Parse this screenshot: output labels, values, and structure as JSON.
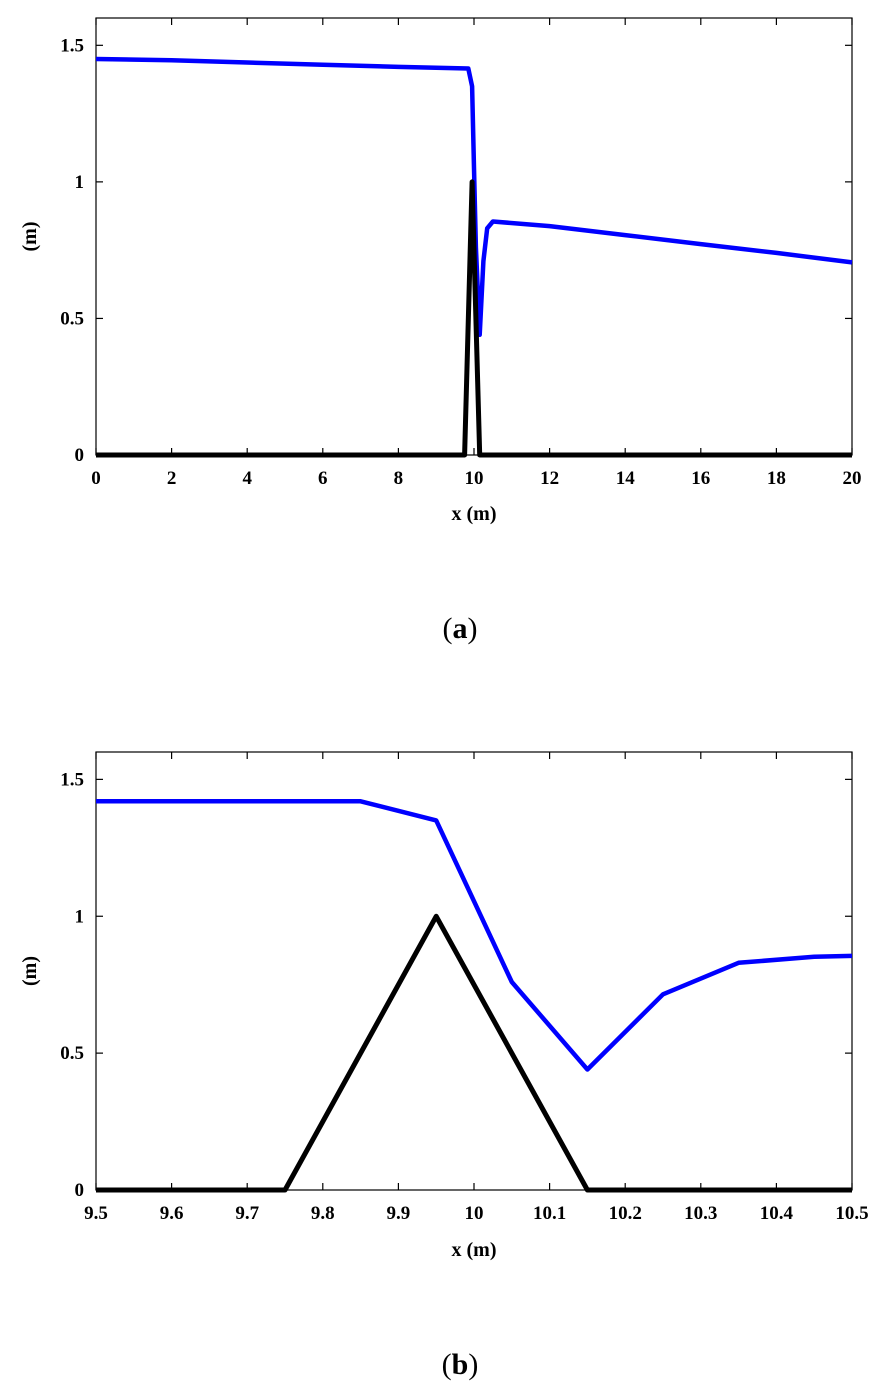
{
  "chart_data": [
    {
      "type": "line",
      "panel_label": "a",
      "xlabel": "x (m)",
      "ylabel": "(m)",
      "xlim": [
        0,
        20
      ],
      "ylim": [
        0,
        1.6
      ],
      "xticks": [
        "0",
        "2",
        "4",
        "6",
        "8",
        "10",
        "12",
        "14",
        "16",
        "18",
        "20"
      ],
      "yticks": [
        "0",
        "0.5",
        "1",
        "1.5"
      ],
      "xtick_values": [
        0,
        2,
        4,
        6,
        8,
        10,
        12,
        14,
        16,
        18,
        20
      ],
      "ytick_values": [
        0,
        0.5,
        1,
        1.5
      ],
      "grid": false,
      "series": [
        {
          "color": "#0000ff",
          "x": [
            0,
            2,
            4,
            6,
            8,
            9.85,
            9.95,
            10.0,
            10.05,
            10.15,
            10.25,
            10.35,
            10.5,
            12,
            14,
            16,
            18,
            20
          ],
          "y": [
            1.45,
            1.445,
            1.437,
            1.429,
            1.421,
            1.415,
            1.35,
            1.05,
            0.76,
            0.44,
            0.71,
            0.83,
            0.855,
            0.838,
            0.805,
            0.772,
            0.74,
            0.705
          ]
        },
        {
          "color": "#000000",
          "x": [
            0,
            9.75,
            9.95,
            10.15,
            20
          ],
          "y": [
            0,
            0,
            1.0,
            0,
            0
          ]
        }
      ]
    },
    {
      "type": "line",
      "panel_label": "b",
      "xlabel": "x (m)",
      "ylabel": "(m)",
      "xlim": [
        9.5,
        10.5
      ],
      "ylim": [
        0,
        1.6
      ],
      "xticks": [
        "9.5",
        "9.6",
        "9.7",
        "9.8",
        "9.9",
        "10",
        "10.1",
        "10.2",
        "10.3",
        "10.4",
        "10.5"
      ],
      "yticks": [
        "0",
        "0.5",
        "1",
        "1.5"
      ],
      "xtick_values": [
        9.5,
        9.6,
        9.7,
        9.8,
        9.9,
        10.0,
        10.1,
        10.2,
        10.3,
        10.4,
        10.5
      ],
      "ytick_values": [
        0,
        0.5,
        1,
        1.5
      ],
      "grid": false,
      "series": [
        {
          "color": "#0000ff",
          "x": [
            9.5,
            9.85,
            9.95,
            10.05,
            10.15,
            10.25,
            10.35,
            10.45,
            10.5
          ],
          "y": [
            1.42,
            1.42,
            1.35,
            0.76,
            0.44,
            0.715,
            0.83,
            0.852,
            0.855
          ]
        },
        {
          "color": "#000000",
          "x": [
            9.5,
            9.75,
            9.95,
            10.15,
            10.5
          ],
          "y": [
            0,
            0,
            1.0,
            0,
            0
          ]
        }
      ]
    }
  ]
}
